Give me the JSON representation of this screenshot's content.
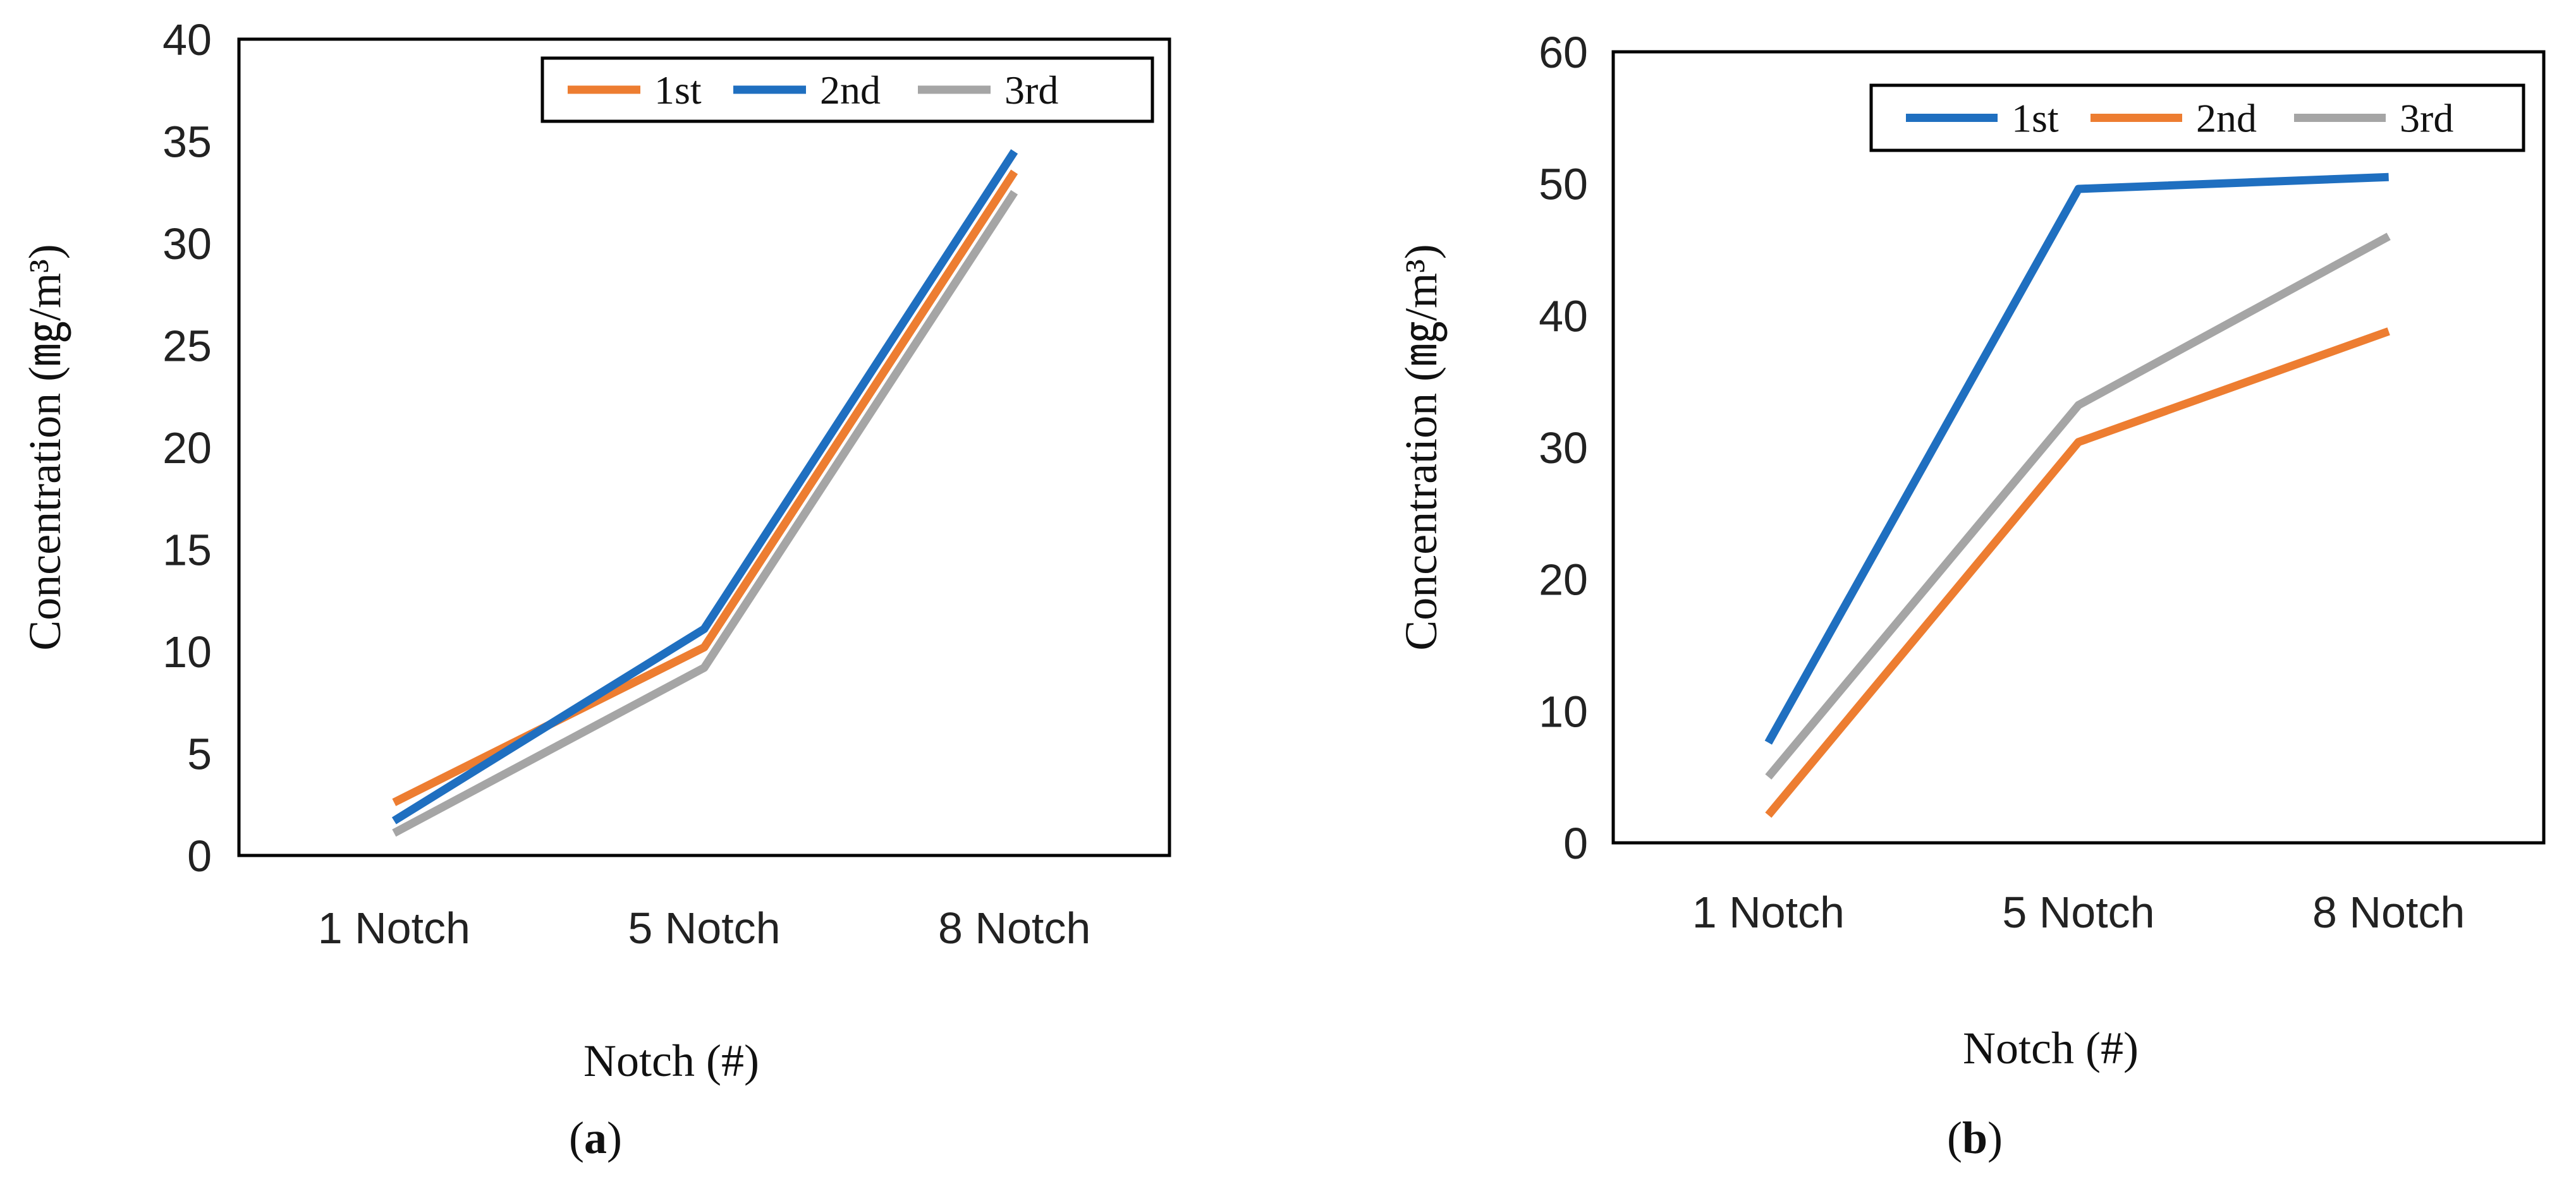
{
  "chart_data": [
    {
      "type": "line",
      "panel_label": "a",
      "categories": [
        "1 Notch",
        "5 Notch",
        "8 Notch"
      ],
      "xlabel": "Notch (#)",
      "ylabel": "Concentration (㎎/m³)",
      "ylim": [
        0,
        40
      ],
      "yticks": [
        "0",
        "5",
        "10",
        "15",
        "20",
        "25",
        "30",
        "35",
        "40"
      ],
      "legend_position": "top-right",
      "series": [
        {
          "name": "1st",
          "color": "#ED7D31",
          "values": [
            2.6,
            10.2,
            33.5
          ]
        },
        {
          "name": "2nd",
          "color": "#1F6FC0",
          "values": [
            1.7,
            11.1,
            34.5
          ]
        },
        {
          "name": "3rd",
          "color": "#A5A5A5",
          "values": [
            1.1,
            9.2,
            32.5
          ]
        }
      ]
    },
    {
      "type": "line",
      "panel_label": "b",
      "categories": [
        "1 Notch",
        "5 Notch",
        "8 Notch"
      ],
      "xlabel": "Notch (#)",
      "ylabel": "Concentration (㎎/m³)",
      "ylim": [
        0,
        60
      ],
      "yticks": [
        "0",
        "10",
        "20",
        "30",
        "40",
        "50",
        "60"
      ],
      "legend_position": "top-right",
      "series": [
        {
          "name": "1st",
          "color": "#1F6FC0",
          "values": [
            7.6,
            49.6,
            50.5
          ]
        },
        {
          "name": "2nd",
          "color": "#ED7D31",
          "values": [
            2.1,
            30.4,
            38.8
          ]
        },
        {
          "name": "3rd",
          "color": "#A5A5A5",
          "values": [
            5.0,
            33.2,
            46.0
          ]
        }
      ]
    }
  ]
}
